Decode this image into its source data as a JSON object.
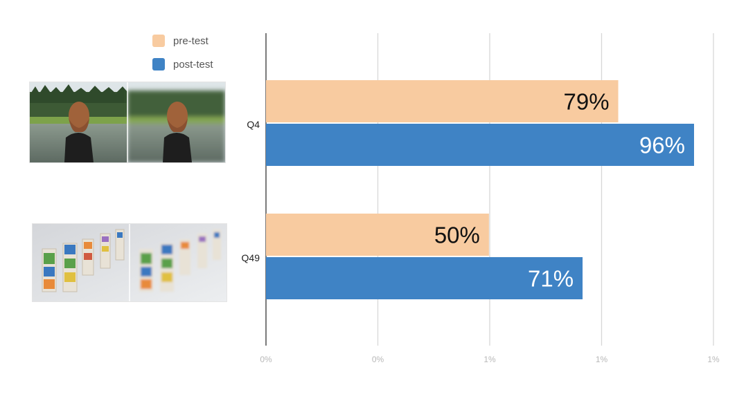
{
  "legend": {
    "items": [
      {
        "label": "pre-test",
        "color": "#f8cba0"
      },
      {
        "label": "post-test",
        "color": "#3f83c5"
      }
    ]
  },
  "thumbnails": [
    {
      "question": "Q4",
      "subject": "person photographed from behind in front of trees and a lake",
      "left": "sharp",
      "right": "blurred background"
    },
    {
      "question": "Q49",
      "subject": "stacks of letter blocks",
      "left": "sharp",
      "right": "blurred"
    }
  ],
  "chart_data": {
    "type": "bar",
    "orientation": "horizontal",
    "categories": [
      "Q4",
      "Q49"
    ],
    "series": [
      {
        "name": "pre-test",
        "color": "#f8cba0",
        "values": [
          79,
          50
        ],
        "labels": [
          "79%",
          "50%"
        ],
        "label_color": "#111111"
      },
      {
        "name": "post-test",
        "color": "#3f83c5",
        "values": [
          96,
          71
        ],
        "labels": [
          "96%",
          "71%"
        ],
        "label_color": "#ffffff"
      }
    ],
    "x_ticks": [
      "0%",
      "0%",
      "1%",
      "1%",
      "1%"
    ],
    "xlim": [
      0,
      100
    ],
    "grid": true,
    "legend_position": "top-left"
  }
}
